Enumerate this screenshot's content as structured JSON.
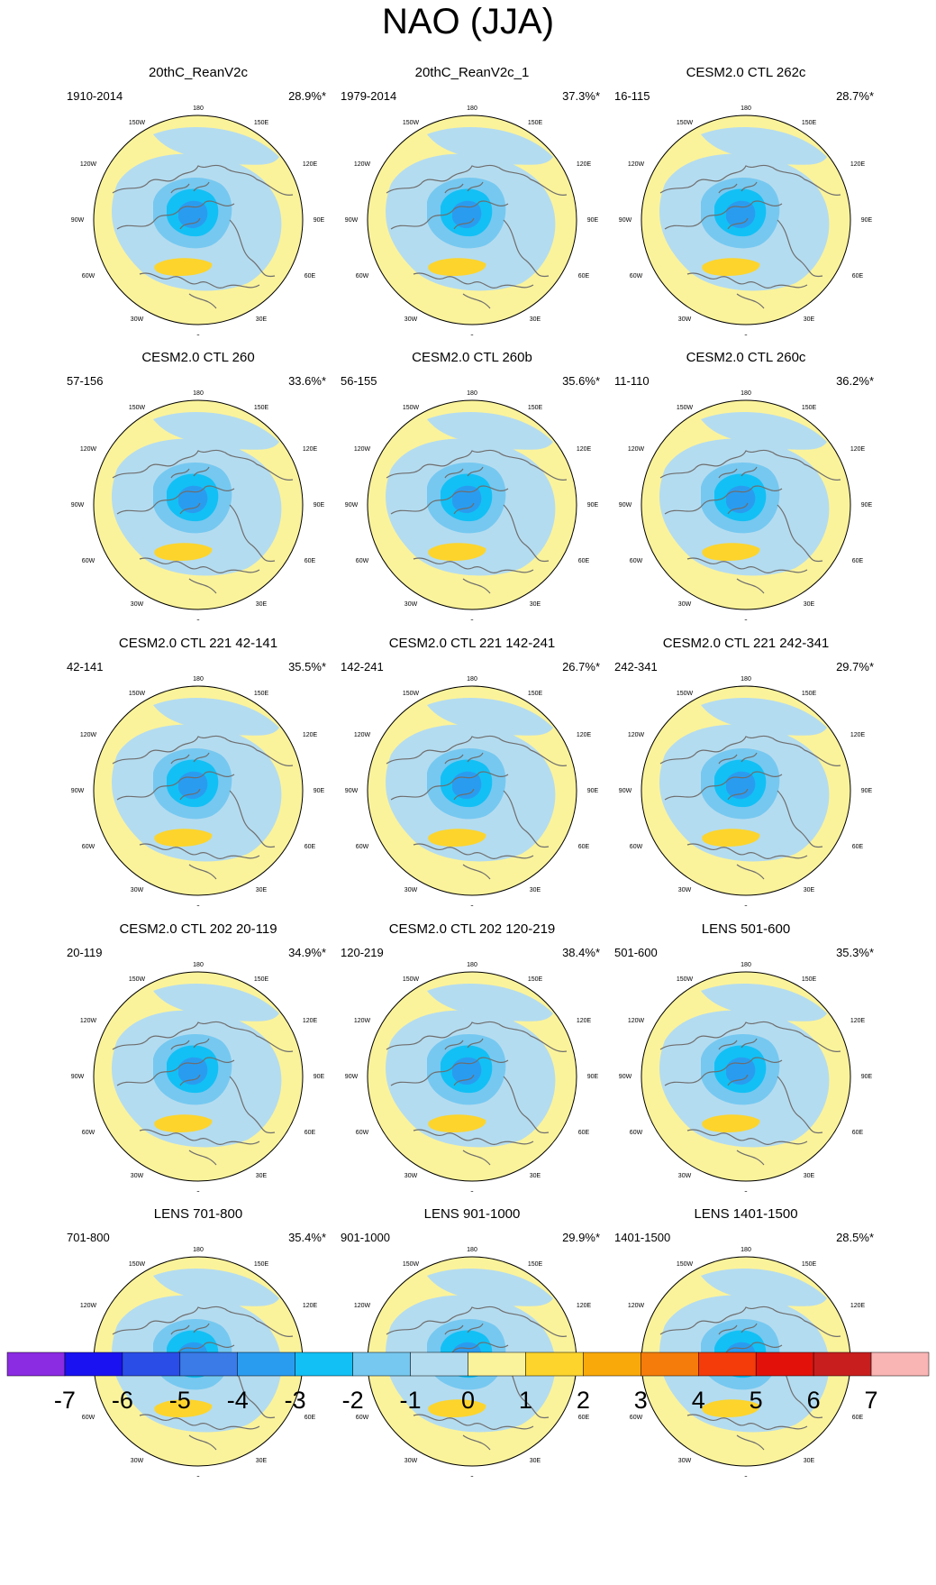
{
  "title": "NAO (JJA)",
  "colors": {
    "neg7": "#8b2be2",
    "neg6": "#1a12f0",
    "neg5": "#2a4de8",
    "neg4": "#3a7be8",
    "neg3": "#2a9cf0",
    "neg2": "#12c0f5",
    "neg1": "#76c8f0",
    "neg0": "#b4dcf0",
    "pos0": "#fbf39b",
    "pos1": "#fcd42c",
    "pos2": "#f9a90a",
    "pos3": "#f57c0a",
    "pos4": "#f43c0a",
    "pos5": "#e2120a",
    "pos6": "#c81e1e",
    "pos7": "#f9b4b4",
    "land_outline": "#6e6e6e"
  },
  "map_labels": {
    "top": "180",
    "bottom": "0",
    "w150": "150W",
    "e150": "150E",
    "w120": "120W",
    "e120": "120E",
    "w90": "90W",
    "e90": "90E",
    "w60": "60W",
    "e60": "60E",
    "w30": "30W",
    "e30": "30E"
  },
  "panels": [
    {
      "title": "20thC_ReanV2c",
      "years": "1910-2014",
      "pct": "28.9%*"
    },
    {
      "title": "20thC_ReanV2c_1",
      "years": "1979-2014",
      "pct": "37.3%*"
    },
    {
      "title": "CESM2.0 CTL 262c",
      "years": "16-115",
      "pct": "28.7%*"
    },
    {
      "title": "CESM2.0 CTL 260",
      "years": "57-156",
      "pct": "33.6%*"
    },
    {
      "title": "CESM2.0 CTL 260b",
      "years": "56-155",
      "pct": "35.6%*"
    },
    {
      "title": "CESM2.0 CTL 260c",
      "years": "11-110",
      "pct": "36.2%*"
    },
    {
      "title": "CESM2.0 CTL 221 42-141",
      "years": "42-141",
      "pct": "35.5%*"
    },
    {
      "title": "CESM2.0 CTL 221 142-241",
      "years": "142-241",
      "pct": "26.7%*"
    },
    {
      "title": "CESM2.0 CTL 221 242-341",
      "years": "242-341",
      "pct": "29.7%*"
    },
    {
      "title": "CESM2.0 CTL 202 20-119",
      "years": "20-119",
      "pct": "34.9%*"
    },
    {
      "title": "CESM2.0 CTL 202 120-219",
      "years": "120-219",
      "pct": "38.4%*"
    },
    {
      "title": "LENS 501-600",
      "years": "501-600",
      "pct": "35.3%*"
    },
    {
      "title": "LENS 701-800",
      "years": "701-800",
      "pct": "35.4%*"
    },
    {
      "title": "LENS 901-1000",
      "years": "901-1000",
      "pct": "29.9%*"
    },
    {
      "title": "LENS 1401-1500",
      "years": "1401-1500",
      "pct": "28.5%*"
    }
  ],
  "colorbar": {
    "labels": [
      "-7",
      "-6",
      "-5",
      "-4",
      "-3",
      "-2",
      "-1",
      "0",
      "1",
      "2",
      "3",
      "4",
      "5",
      "6",
      "7"
    ],
    "colors": [
      "#8b2be2",
      "#1a12f0",
      "#2a4de8",
      "#3a7be8",
      "#2a9cf0",
      "#12c0f5",
      "#76c8f0",
      "#b4dcf0",
      "#fbf39b",
      "#fcd42c",
      "#f9a90a",
      "#f57c0a",
      "#f43c0a",
      "#e2120a",
      "#c81e1e",
      "#f9b4b4"
    ]
  }
}
